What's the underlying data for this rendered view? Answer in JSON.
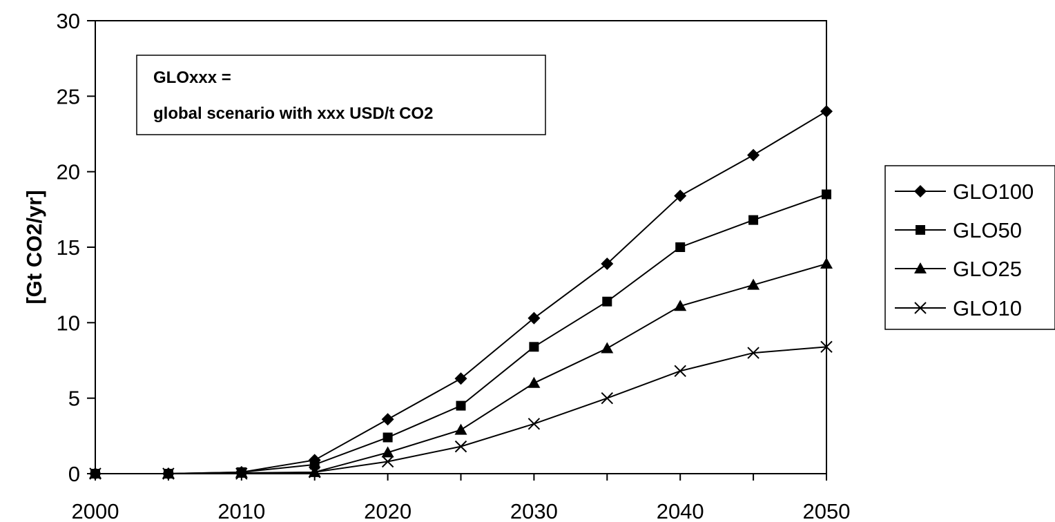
{
  "chart_data": {
    "type": "line",
    "ylabel": "[Gt CO2/yr]",
    "xlim": [
      2000,
      2050
    ],
    "ylim": [
      0,
      30
    ],
    "xticks": [
      "2000",
      "2010",
      "2020",
      "2030",
      "2040",
      "2050"
    ],
    "yticks": [
      "0",
      "5",
      "10",
      "15",
      "20",
      "25",
      "30"
    ],
    "grid": false,
    "legend_position": "right",
    "annotation": {
      "line1": "GLOxxx =",
      "line2": "global scenario with xxx USD/t CO2"
    },
    "x": [
      2000,
      2005,
      2010,
      2015,
      2020,
      2025,
      2030,
      2035,
      2040,
      2045,
      2050
    ],
    "series": [
      {
        "name": "GLO100",
        "marker": "diamond",
        "values": [
          0,
          0,
          0.1,
          0.9,
          3.6,
          6.3,
          10.3,
          13.9,
          18.4,
          21.1,
          24.0
        ]
      },
      {
        "name": "GLO50",
        "marker": "square",
        "values": [
          0,
          0,
          0.1,
          0.6,
          2.4,
          4.5,
          8.4,
          11.4,
          15.0,
          16.8,
          18.5
        ]
      },
      {
        "name": "GLO25",
        "marker": "triangle",
        "values": [
          0,
          0,
          0.05,
          0.1,
          1.4,
          2.9,
          6.0,
          8.3,
          11.1,
          12.5,
          13.9
        ]
      },
      {
        "name": "GLO10",
        "marker": "x",
        "values": [
          0,
          0,
          0,
          0.1,
          0.8,
          1.8,
          3.3,
          5.0,
          6.8,
          8.0,
          8.4
        ]
      }
    ]
  }
}
